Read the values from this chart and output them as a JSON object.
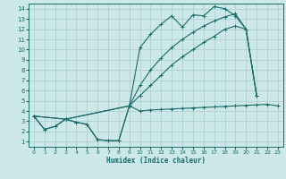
{
  "xlabel": "Humidex (Indice chaleur)",
  "background_color": "#cce8e8",
  "grid_color": "#aacccc",
  "line_color": "#1a6b6b",
  "xlim": [
    -0.5,
    23.5
  ],
  "ylim": [
    0.5,
    14.5
  ],
  "xticks": [
    0,
    1,
    2,
    3,
    4,
    5,
    6,
    7,
    8,
    9,
    10,
    11,
    12,
    13,
    14,
    15,
    16,
    17,
    18,
    19,
    20,
    21,
    22,
    23
  ],
  "yticks": [
    1,
    2,
    3,
    4,
    5,
    6,
    7,
    8,
    9,
    10,
    11,
    12,
    13,
    14
  ],
  "lineA_x": [
    0,
    1,
    2,
    3,
    4,
    5,
    6,
    7,
    8,
    9,
    10,
    11,
    12,
    13,
    14,
    15,
    16,
    17,
    18,
    19,
    20,
    21
  ],
  "lineA_y": [
    3.5,
    2.2,
    2.5,
    3.2,
    2.9,
    2.7,
    1.2,
    1.1,
    1.1,
    4.5,
    10.2,
    11.5,
    12.5,
    13.3,
    12.2,
    13.4,
    13.3,
    14.2,
    14.0,
    13.3,
    12.0,
    5.5
  ],
  "lineB_x": [
    0,
    3,
    9,
    10,
    11,
    12,
    13,
    14,
    15,
    16,
    17,
    18,
    19,
    20,
    21
  ],
  "lineB_y": [
    3.5,
    3.2,
    4.5,
    6.5,
    8.0,
    9.2,
    10.2,
    11.0,
    11.7,
    12.3,
    12.8,
    13.2,
    13.5,
    12.0,
    5.5
  ],
  "lineC_x": [
    0,
    3,
    9,
    10,
    11,
    12,
    13,
    14,
    15,
    16,
    17,
    18,
    19,
    20,
    21
  ],
  "lineC_y": [
    3.5,
    3.2,
    4.5,
    5.5,
    6.5,
    7.5,
    8.5,
    9.3,
    10.0,
    10.7,
    11.3,
    12.0,
    12.3,
    12.0,
    5.5
  ],
  "lineD_x": [
    0,
    1,
    2,
    3,
    4,
    5,
    6,
    7,
    8,
    9,
    10,
    11,
    12,
    13,
    14,
    15,
    16,
    17,
    18,
    19,
    20,
    21,
    22,
    23
  ],
  "lineD_y": [
    3.5,
    2.2,
    2.5,
    3.2,
    2.9,
    2.7,
    1.2,
    1.1,
    1.1,
    4.5,
    4.0,
    4.1,
    4.15,
    4.2,
    4.25,
    4.3,
    4.35,
    4.4,
    4.45,
    4.5,
    4.55,
    4.6,
    4.65,
    4.5
  ]
}
